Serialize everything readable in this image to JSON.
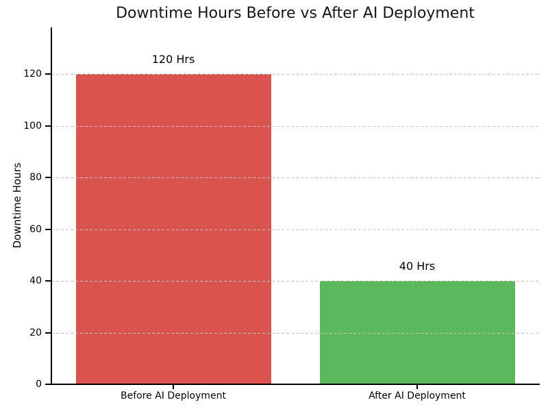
{
  "chart_data": {
    "type": "bar",
    "title": "Downtime Hours Before vs After AI Deployment",
    "xlabel": "",
    "ylabel": "Downtime Hours",
    "categories": [
      "Before AI Deployment",
      "After AI Deployment"
    ],
    "values": [
      120,
      40
    ],
    "bar_labels": [
      "120 Hrs",
      "40 Hrs"
    ],
    "bar_colors": [
      "#d9534f",
      "#5cb85c"
    ],
    "yticks": [
      0,
      20,
      40,
      60,
      80,
      100,
      120
    ],
    "ylim": [
      0,
      138
    ],
    "grid": "horizontal-dashed",
    "gridline_color": "#c3c3c3",
    "axis_color": "#000000",
    "legend": "none"
  }
}
